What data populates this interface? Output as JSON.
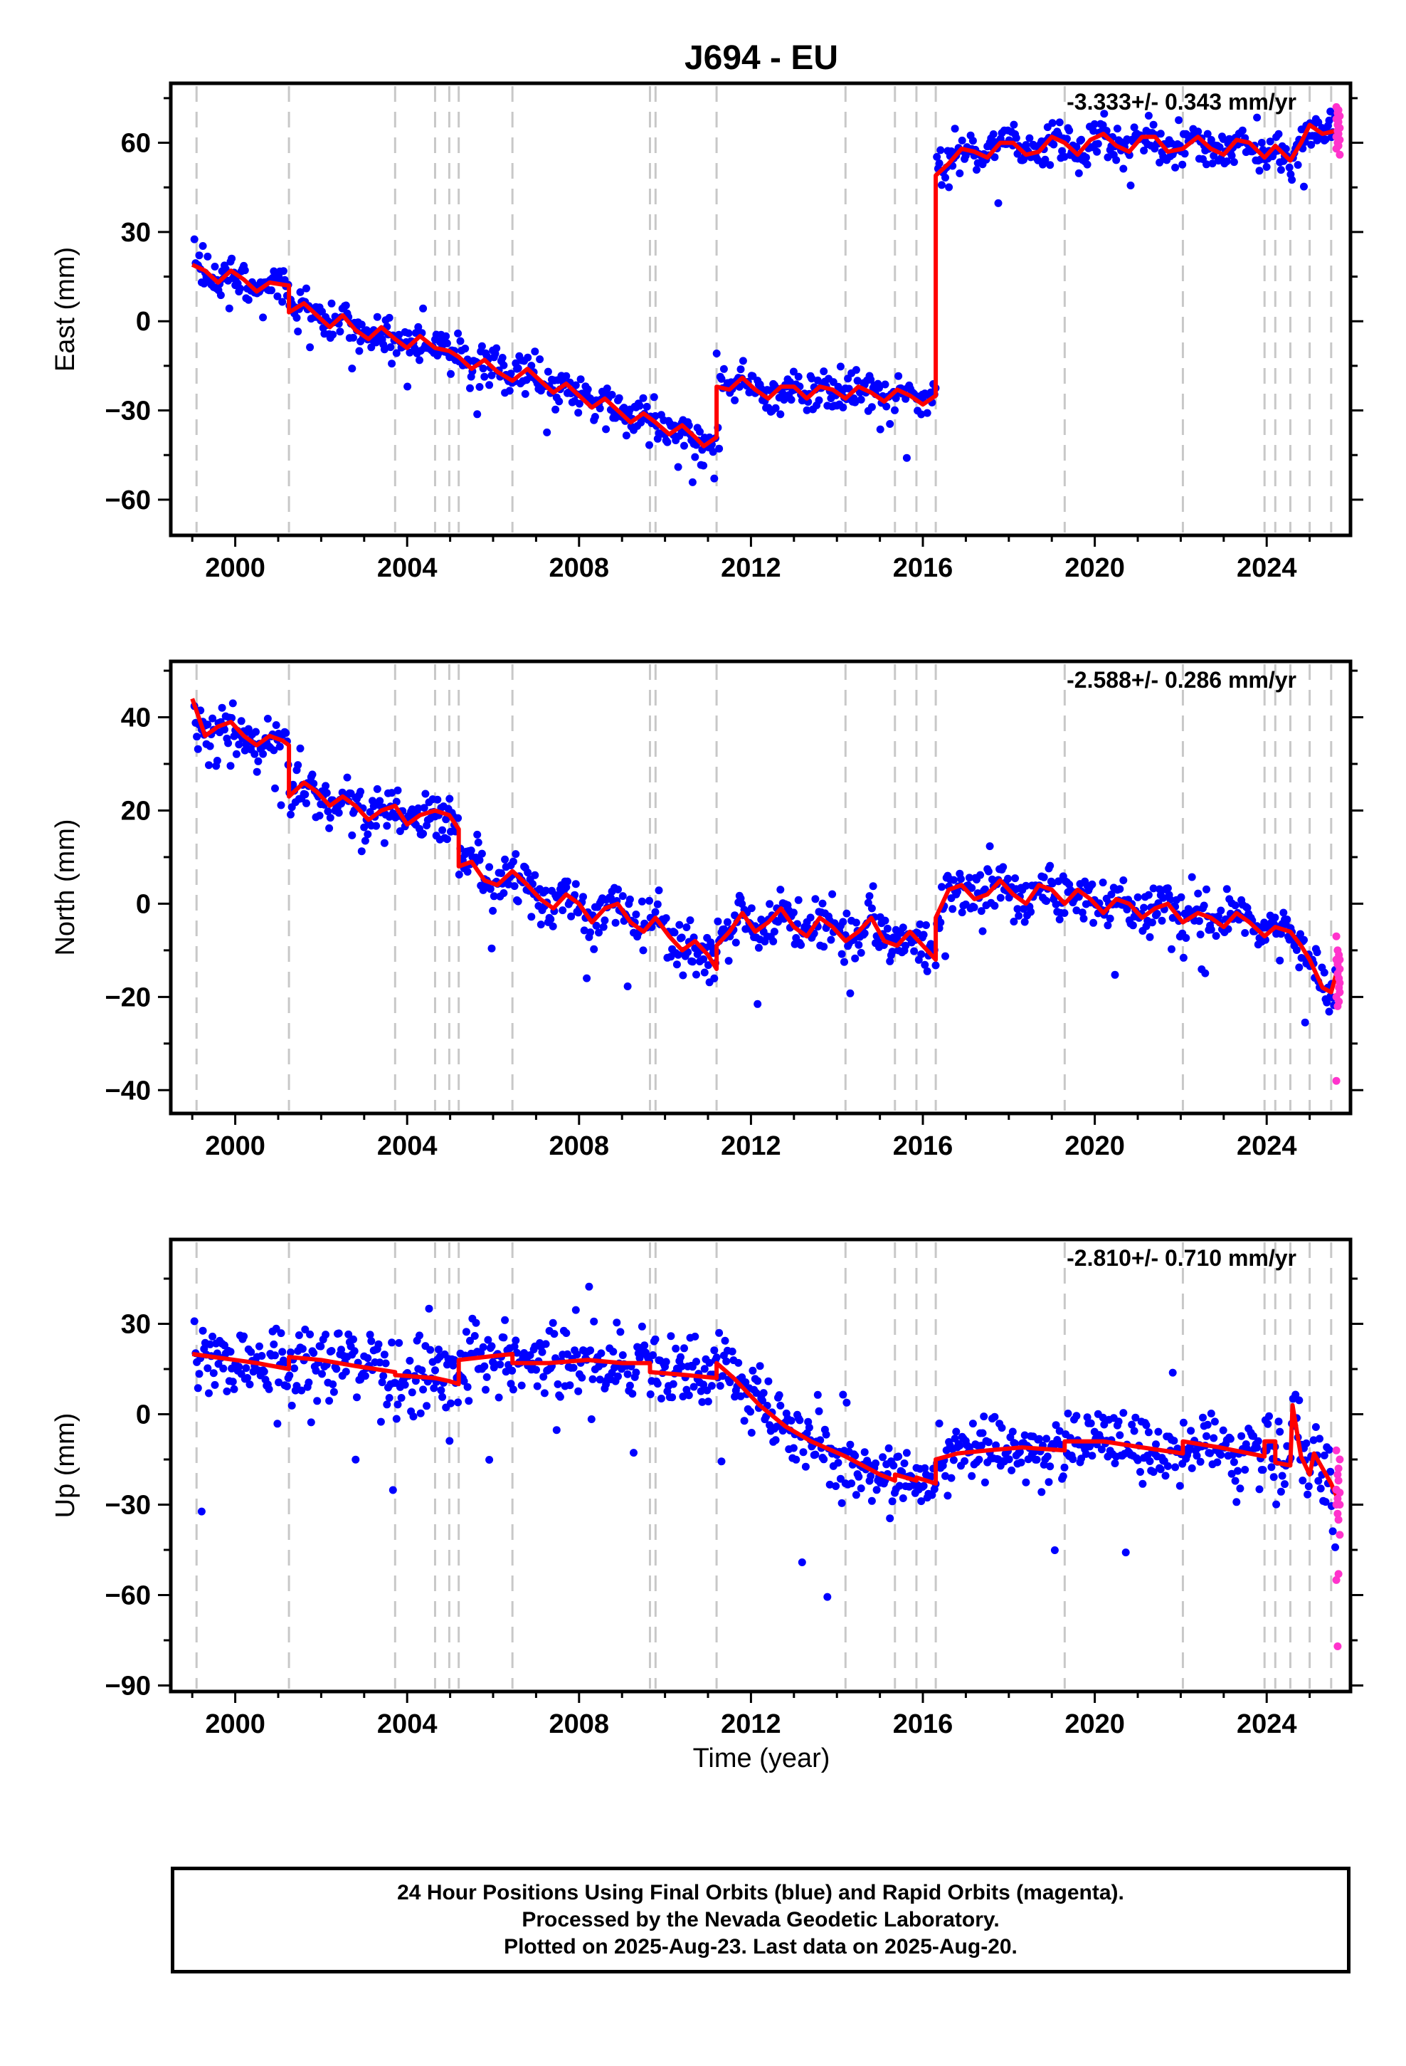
{
  "title": "J694 - EU",
  "xlabel": "Time (year)",
  "colors": {
    "final": "#0000ff",
    "rapid": "#ff33cc",
    "model": "#ff0000",
    "breaks": "#c8c8c8"
  },
  "footer": {
    "line1": "24 Hour Positions Using Final Orbits (blue) and Rapid Orbits (magenta).",
    "line2": "Processed by the Nevada Geodetic Laboratory.",
    "line3": "Plotted on 2025-Aug-23. Last data on 2025-Aug-20."
  },
  "chart_data": [
    {
      "type": "scatter",
      "ylabel": "East (mm)",
      "rate": "-3.333+/- 0.343 mm/yr",
      "xlim": [
        1998.5,
        2025.95
      ],
      "ylim": [
        -72,
        80
      ],
      "xticks": [
        2000,
        2004,
        2008,
        2012,
        2016,
        2020,
        2024
      ],
      "yticks": [
        -60,
        -30,
        0,
        30,
        60
      ],
      "breaks": [
        1999.1,
        2001.25,
        2003.72,
        2004.65,
        2004.98,
        2005.2,
        2006.45,
        2009.65,
        2009.78,
        2011.2,
        2014.2,
        2015.35,
        2015.85,
        2016.3,
        2019.3,
        2022.05,
        2023.95,
        2024.2,
        2024.55,
        2025.0,
        2025.5
      ],
      "model": [
        [
          1999.0,
          19
        ],
        [
          1999.3,
          17
        ],
        [
          1999.6,
          13
        ],
        [
          1999.9,
          17
        ],
        [
          2000.2,
          14
        ],
        [
          2000.5,
          10
        ],
        [
          2000.8,
          13
        ],
        [
          2001.25,
          12
        ],
        [
          2001.25,
          3
        ],
        [
          2001.6,
          6
        ],
        [
          2001.9,
          2
        ],
        [
          2002.2,
          -2
        ],
        [
          2002.5,
          2
        ],
        [
          2002.8,
          -3
        ],
        [
          2003.1,
          -6
        ],
        [
          2003.4,
          -2
        ],
        [
          2003.72,
          -6
        ],
        [
          2004.0,
          -9
        ],
        [
          2004.3,
          -5
        ],
        [
          2004.65,
          -9
        ],
        [
          2004.98,
          -10
        ],
        [
          2005.2,
          -12
        ],
        [
          2005.5,
          -16
        ],
        [
          2005.8,
          -13
        ],
        [
          2006.1,
          -17
        ],
        [
          2006.45,
          -20
        ],
        [
          2006.8,
          -16
        ],
        [
          2007.1,
          -20
        ],
        [
          2007.4,
          -24
        ],
        [
          2007.7,
          -21
        ],
        [
          2008.0,
          -25
        ],
        [
          2008.3,
          -29
        ],
        [
          2008.6,
          -26
        ],
        [
          2008.9,
          -30
        ],
        [
          2009.2,
          -34
        ],
        [
          2009.5,
          -31
        ],
        [
          2009.78,
          -34
        ],
        [
          2010.1,
          -38
        ],
        [
          2010.4,
          -35
        ],
        [
          2010.7,
          -39
        ],
        [
          2010.9,
          -42
        ],
        [
          2011.2,
          -39
        ],
        [
          2011.2,
          -22
        ],
        [
          2011.5,
          -23
        ],
        [
          2011.8,
          -19
        ],
        [
          2012.1,
          -23
        ],
        [
          2012.4,
          -26
        ],
        [
          2012.7,
          -22
        ],
        [
          2013.0,
          -22
        ],
        [
          2013.3,
          -26
        ],
        [
          2013.6,
          -22
        ],
        [
          2013.9,
          -23
        ],
        [
          2014.2,
          -26
        ],
        [
          2014.5,
          -22
        ],
        [
          2014.8,
          -24
        ],
        [
          2015.1,
          -27
        ],
        [
          2015.4,
          -23
        ],
        [
          2015.7,
          -25
        ],
        [
          2016.0,
          -28
        ],
        [
          2016.3,
          -25
        ],
        [
          2016.3,
          49
        ],
        [
          2016.6,
          53
        ],
        [
          2016.9,
          58
        ],
        [
          2017.2,
          57
        ],
        [
          2017.5,
          55
        ],
        [
          2017.8,
          60
        ],
        [
          2018.1,
          60
        ],
        [
          2018.4,
          56
        ],
        [
          2018.7,
          57
        ],
        [
          2019.0,
          62
        ],
        [
          2019.3,
          60
        ],
        [
          2019.6,
          56
        ],
        [
          2019.9,
          61
        ],
        [
          2020.2,
          63
        ],
        [
          2020.5,
          59
        ],
        [
          2020.8,
          57
        ],
        [
          2021.1,
          62
        ],
        [
          2021.4,
          62
        ],
        [
          2021.7,
          57
        ],
        [
          2022.05,
          58
        ],
        [
          2022.4,
          62
        ],
        [
          2022.7,
          58
        ],
        [
          2023.0,
          56
        ],
        [
          2023.3,
          61
        ],
        [
          2023.6,
          60
        ],
        [
          2023.95,
          55
        ],
        [
          2024.2,
          59
        ],
        [
          2024.55,
          54
        ],
        [
          2024.8,
          60
        ],
        [
          2025.0,
          66
        ],
        [
          2025.3,
          63
        ],
        [
          2025.6,
          64
        ]
      ],
      "rapid_x": [
        2025.62,
        2025.65,
        2025.67,
        2025.7
      ],
      "rapid_y": [
        [
          62,
          68,
          72,
          58
        ],
        [
          66,
          70,
          60,
          64
        ],
        [
          63,
          67,
          71,
          59
        ],
        [
          65,
          61,
          69,
          56
        ]
      ]
    },
    {
      "type": "scatter",
      "ylabel": "North (mm)",
      "rate": "-2.588+/- 0.286 mm/yr",
      "xlim": [
        1998.5,
        2025.95
      ],
      "ylim": [
        -45,
        52
      ],
      "xticks": [
        2000,
        2004,
        2008,
        2012,
        2016,
        2020,
        2024
      ],
      "yticks": [
        -40,
        -20,
        0,
        20,
        40
      ],
      "breaks": [
        1999.1,
        2001.25,
        2003.72,
        2004.65,
        2004.98,
        2005.2,
        2006.45,
        2009.65,
        2009.78,
        2011.2,
        2014.2,
        2015.35,
        2015.85,
        2016.3,
        2019.3,
        2022.05,
        2023.95,
        2024.2,
        2024.55,
        2025.0,
        2025.5
      ],
      "model": [
        [
          1999.0,
          44
        ],
        [
          1999.3,
          36
        ],
        [
          1999.6,
          38
        ],
        [
          1999.9,
          39
        ],
        [
          2000.2,
          36
        ],
        [
          2000.5,
          34
        ],
        [
          2000.8,
          36
        ],
        [
          2001.1,
          35
        ],
        [
          2001.25,
          34
        ],
        [
          2001.25,
          23
        ],
        [
          2001.6,
          26
        ],
        [
          2001.9,
          24
        ],
        [
          2002.2,
          21
        ],
        [
          2002.5,
          23
        ],
        [
          2002.8,
          21
        ],
        [
          2003.1,
          18
        ],
        [
          2003.4,
          20
        ],
        [
          2003.72,
          21
        ],
        [
          2004.0,
          17
        ],
        [
          2004.3,
          19
        ],
        [
          2004.65,
          20
        ],
        [
          2004.98,
          19
        ],
        [
          2005.2,
          16
        ],
        [
          2005.2,
          8
        ],
        [
          2005.5,
          9
        ],
        [
          2005.8,
          5
        ],
        [
          2006.1,
          4
        ],
        [
          2006.45,
          7
        ],
        [
          2006.8,
          4
        ],
        [
          2007.1,
          1
        ],
        [
          2007.4,
          -1
        ],
        [
          2007.7,
          2
        ],
        [
          2008.0,
          0
        ],
        [
          2008.3,
          -4
        ],
        [
          2008.6,
          -1
        ],
        [
          2008.9,
          0
        ],
        [
          2009.2,
          -4
        ],
        [
          2009.5,
          -6
        ],
        [
          2009.78,
          -3
        ],
        [
          2010.1,
          -7
        ],
        [
          2010.4,
          -10
        ],
        [
          2010.7,
          -8
        ],
        [
          2011.0,
          -11
        ],
        [
          2011.2,
          -14
        ],
        [
          2011.2,
          -9
        ],
        [
          2011.5,
          -6
        ],
        [
          2011.8,
          -2
        ],
        [
          2012.1,
          -6
        ],
        [
          2012.4,
          -4
        ],
        [
          2012.7,
          -1
        ],
        [
          2013.0,
          -5
        ],
        [
          2013.3,
          -7
        ],
        [
          2013.6,
          -3
        ],
        [
          2013.9,
          -5
        ],
        [
          2014.2,
          -8
        ],
        [
          2014.5,
          -6
        ],
        [
          2014.8,
          -3
        ],
        [
          2015.1,
          -8
        ],
        [
          2015.4,
          -9
        ],
        [
          2015.7,
          -6
        ],
        [
          2016.0,
          -9
        ],
        [
          2016.3,
          -12
        ],
        [
          2016.3,
          -3
        ],
        [
          2016.6,
          3
        ],
        [
          2016.9,
          4
        ],
        [
          2017.2,
          1
        ],
        [
          2017.5,
          2
        ],
        [
          2017.8,
          5
        ],
        [
          2018.1,
          2
        ],
        [
          2018.4,
          0
        ],
        [
          2018.7,
          4
        ],
        [
          2019.0,
          3
        ],
        [
          2019.3,
          0
        ],
        [
          2019.6,
          3
        ],
        [
          2019.9,
          1
        ],
        [
          2020.2,
          -2
        ],
        [
          2020.5,
          1
        ],
        [
          2020.8,
          0
        ],
        [
          2021.1,
          -3
        ],
        [
          2021.4,
          -1
        ],
        [
          2021.7,
          0
        ],
        [
          2022.05,
          -4
        ],
        [
          2022.4,
          -2
        ],
        [
          2022.7,
          -3
        ],
        [
          2023.0,
          -5
        ],
        [
          2023.3,
          -2
        ],
        [
          2023.6,
          -4
        ],
        [
          2023.95,
          -7
        ],
        [
          2024.2,
          -5
        ],
        [
          2024.55,
          -6
        ],
        [
          2024.8,
          -9
        ],
        [
          2025.0,
          -12
        ],
        [
          2025.3,
          -18
        ],
        [
          2025.5,
          -19
        ],
        [
          2025.62,
          -15
        ]
      ],
      "rapid_x": [
        2025.62,
        2025.65,
        2025.68,
        2025.7
      ],
      "rapid_y": [
        [
          -12,
          -20,
          -38,
          -7
        ],
        [
          -15,
          -22,
          -10,
          -13
        ],
        [
          -18,
          -11,
          -16,
          -21
        ],
        [
          -14,
          -19,
          -17,
          -12
        ]
      ]
    },
    {
      "type": "scatter",
      "ylabel": "Up (mm)",
      "rate": "-2.810+/- 0.710 mm/yr",
      "xlim": [
        1998.5,
        2025.95
      ],
      "ylim": [
        -92,
        58
      ],
      "xticks": [
        2000,
        2004,
        2008,
        2012,
        2016,
        2020,
        2024
      ],
      "yticks": [
        -90,
        -60,
        -30,
        0,
        30
      ],
      "breaks": [
        1999.1,
        2001.25,
        2003.72,
        2004.65,
        2004.98,
        2005.2,
        2006.45,
        2009.65,
        2009.78,
        2011.2,
        2014.2,
        2015.35,
        2015.85,
        2016.3,
        2019.3,
        2022.05,
        2023.95,
        2024.2,
        2024.55,
        2025.0,
        2025.5
      ],
      "model": [
        [
          1999.0,
          20
        ],
        [
          1999.5,
          19
        ],
        [
          2000.0,
          18
        ],
        [
          2000.5,
          17
        ],
        [
          2001.25,
          15
        ],
        [
          2001.25,
          19
        ],
        [
          2002.0,
          18
        ],
        [
          2002.8,
          16
        ],
        [
          2003.72,
          14
        ],
        [
          2003.72,
          13
        ],
        [
          2004.65,
          12
        ],
        [
          2004.98,
          11
        ],
        [
          2005.2,
          10
        ],
        [
          2005.2,
          18
        ],
        [
          2005.8,
          19
        ],
        [
          2006.45,
          20
        ],
        [
          2006.45,
          17
        ],
        [
          2007.3,
          17
        ],
        [
          2008.2,
          18
        ],
        [
          2009.0,
          17
        ],
        [
          2009.65,
          17
        ],
        [
          2009.65,
          14
        ],
        [
          2010.5,
          13
        ],
        [
          2011.2,
          12
        ],
        [
          2011.2,
          17
        ],
        [
          2011.6,
          12
        ],
        [
          2012.2,
          3
        ],
        [
          2012.8,
          -4
        ],
        [
          2013.4,
          -9
        ],
        [
          2014.2,
          -14
        ],
        [
          2015.0,
          -20
        ],
        [
          2015.35,
          -22
        ],
        [
          2015.35,
          -20
        ],
        [
          2015.85,
          -22
        ],
        [
          2015.85,
          -21
        ],
        [
          2016.3,
          -23
        ],
        [
          2016.3,
          -15
        ],
        [
          2016.8,
          -13
        ],
        [
          2017.5,
          -12
        ],
        [
          2018.3,
          -11
        ],
        [
          2019.3,
          -12
        ],
        [
          2019.3,
          -9
        ],
        [
          2020.2,
          -9
        ],
        [
          2021.1,
          -11
        ],
        [
          2022.05,
          -13
        ],
        [
          2022.05,
          -9
        ],
        [
          2022.9,
          -11
        ],
        [
          2023.95,
          -14
        ],
        [
          2023.95,
          -9
        ],
        [
          2024.2,
          -9
        ],
        [
          2024.2,
          -16
        ],
        [
          2024.55,
          -17
        ],
        [
          2024.6,
          3
        ],
        [
          2024.8,
          -14
        ],
        [
          2025.0,
          -20
        ],
        [
          2025.1,
          -13
        ],
        [
          2025.3,
          -18
        ],
        [
          2025.5,
          -23
        ],
        [
          2025.62,
          -27
        ]
      ],
      "rapid_x": [
        2025.62,
        2025.65,
        2025.67,
        2025.7
      ],
      "rapid_y": [
        [
          -25,
          -55,
          -30,
          -12
        ],
        [
          -28,
          -77,
          -20,
          -33
        ],
        [
          -22,
          -53,
          -35,
          -18
        ],
        [
          -30,
          -40,
          -26,
          -15
        ]
      ]
    }
  ]
}
